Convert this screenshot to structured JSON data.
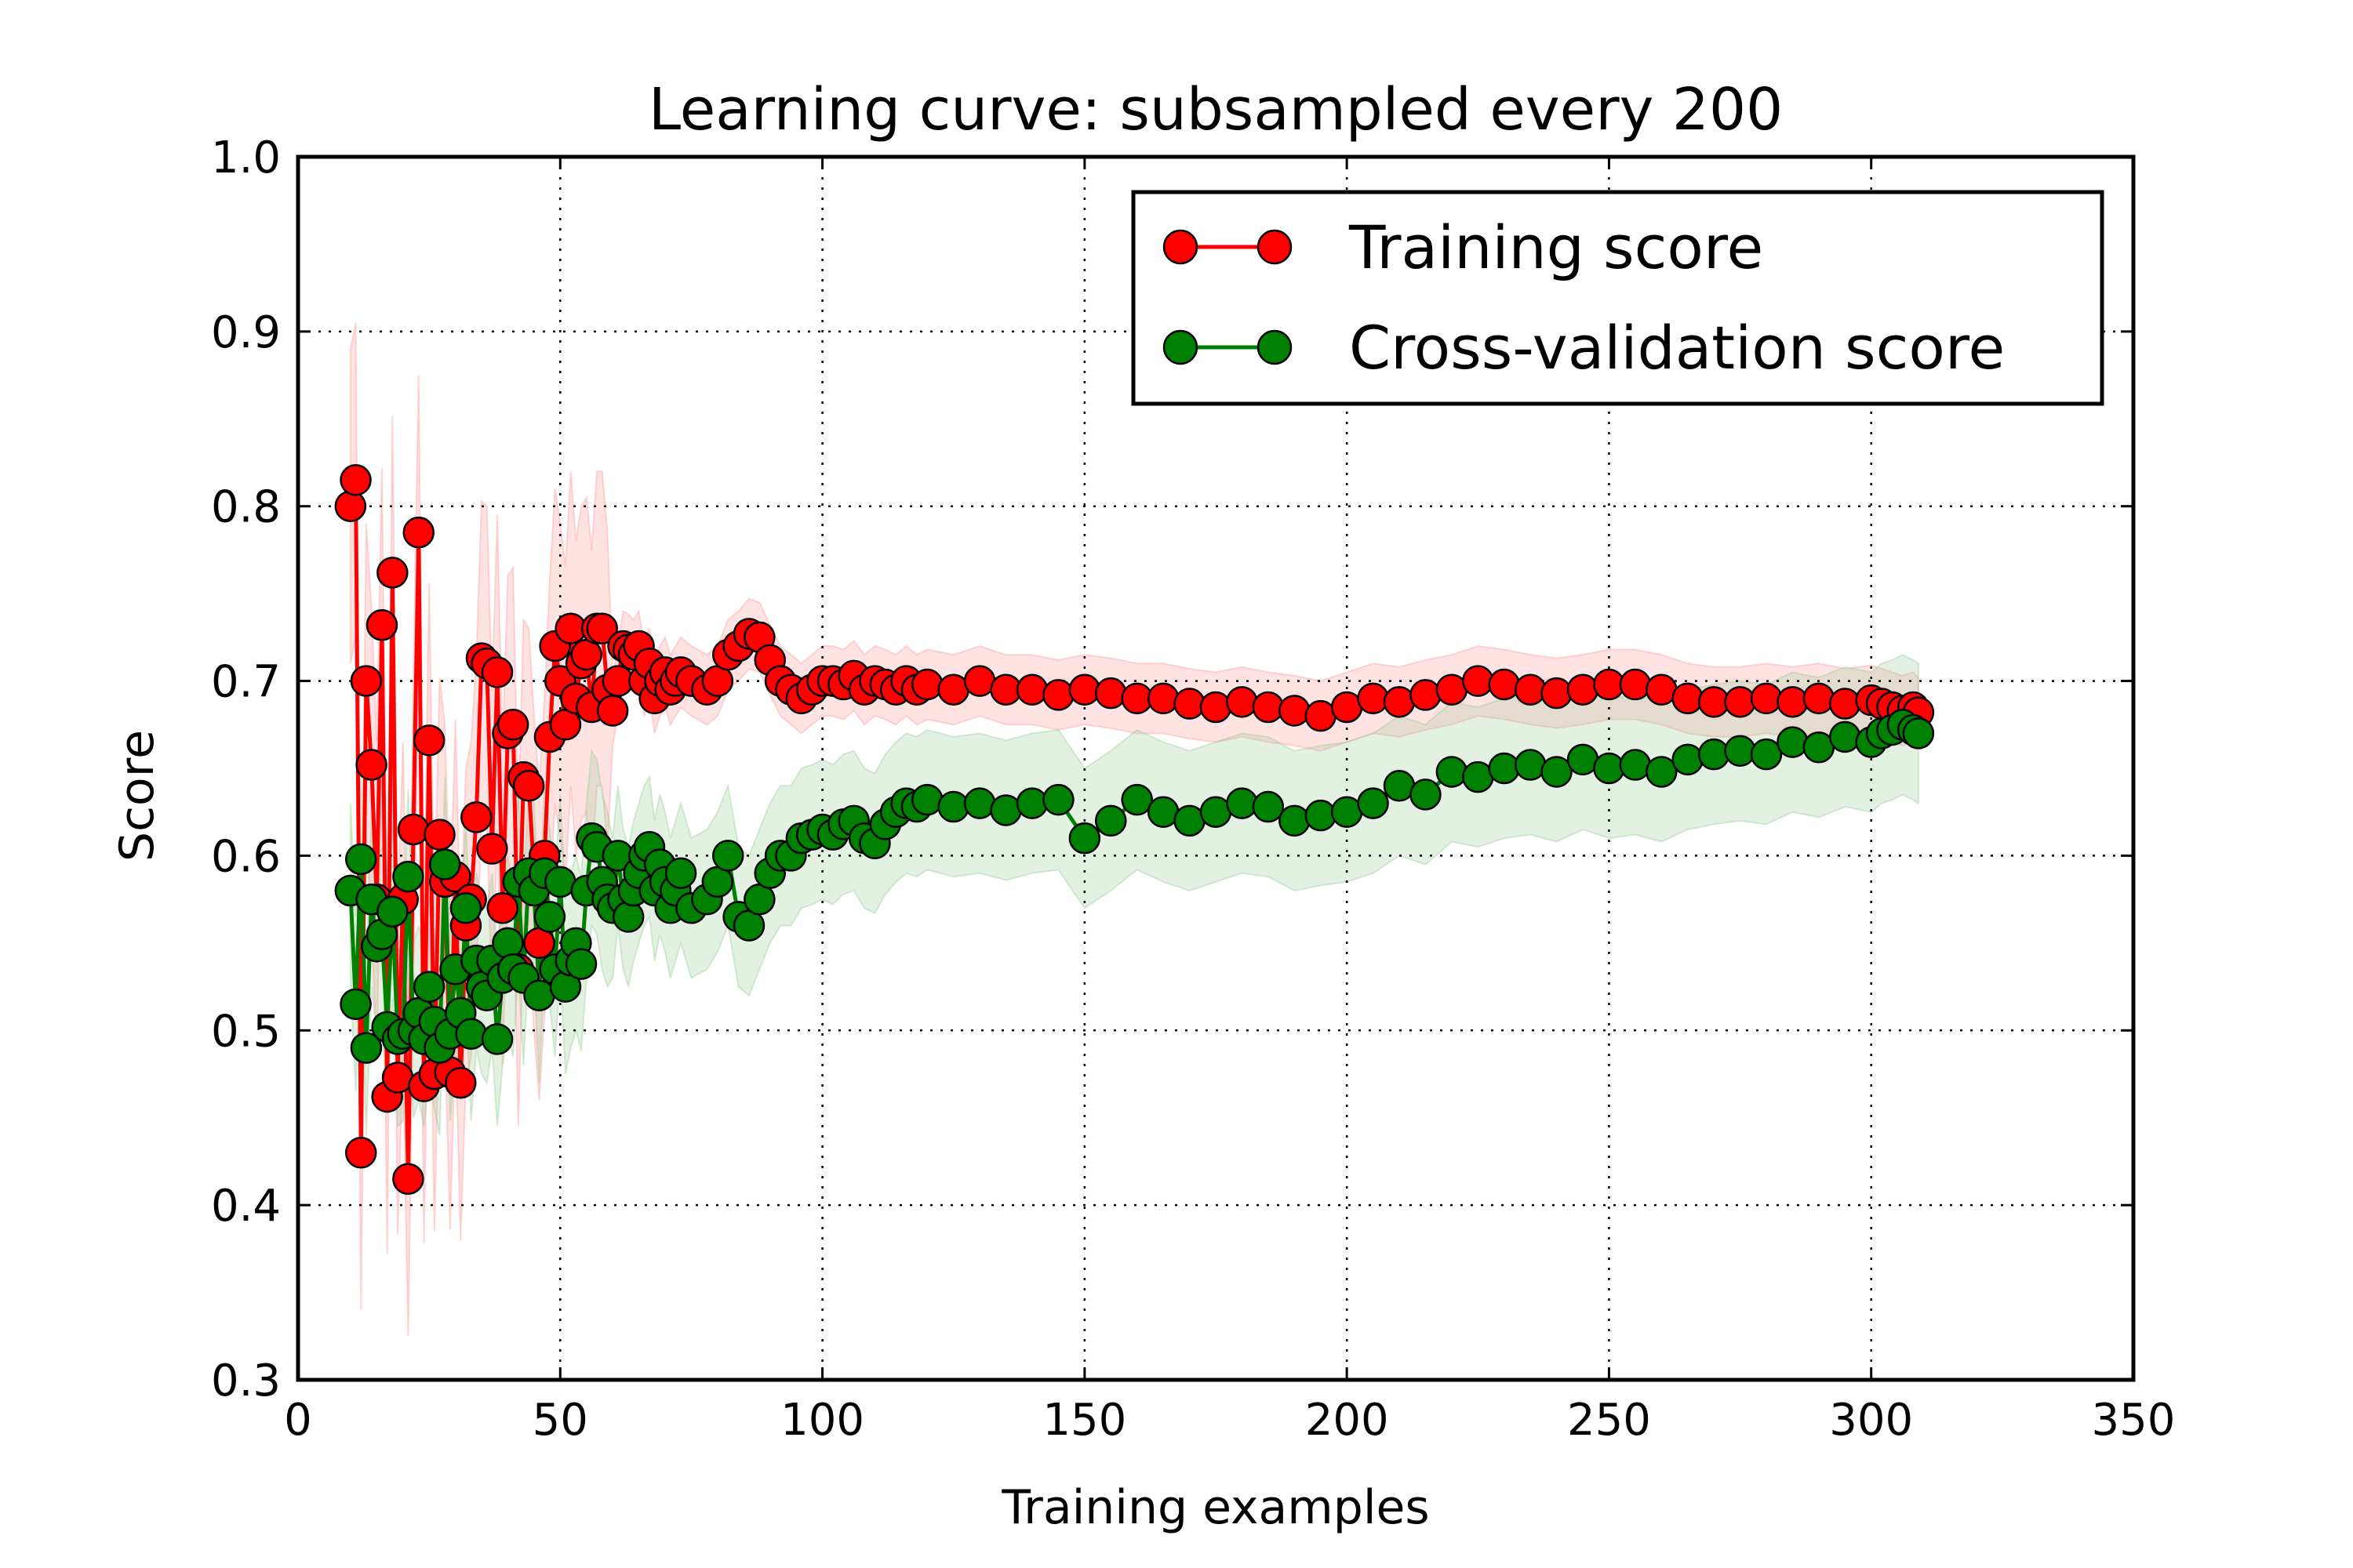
{
  "chart_data": {
    "type": "line",
    "title": "Learning curve: subsampled every 200",
    "xlabel": "Training examples",
    "ylabel": "Score",
    "xlim": [
      0,
      350
    ],
    "ylim": [
      0.3,
      1.0
    ],
    "xticks": [
      0,
      50,
      100,
      150,
      200,
      250,
      300,
      350
    ],
    "yticks": [
      0.3,
      0.4,
      0.5,
      0.6,
      0.7,
      0.8,
      0.9,
      1.0
    ],
    "xtick_labels": [
      "0",
      "50",
      "100",
      "150",
      "200",
      "250",
      "300",
      "350"
    ],
    "ytick_labels": [
      "0.3",
      "0.4",
      "0.5",
      "0.6",
      "0.7",
      "0.8",
      "0.9",
      "1.0"
    ],
    "grid": true,
    "legend_position": "top-right",
    "series": [
      {
        "name": "Training score",
        "color": "#ff0000",
        "band_color": "#ff9090",
        "x": [
          10,
          11,
          12,
          13,
          14,
          15,
          16,
          17,
          18,
          19,
          20,
          21,
          22,
          23,
          24,
          25,
          26,
          27,
          28,
          29,
          30,
          31,
          32,
          33,
          34,
          35,
          36,
          37,
          38,
          39,
          40,
          41,
          42,
          43,
          44,
          45,
          46,
          47,
          48,
          49,
          50,
          51,
          52,
          53,
          54,
          55,
          56,
          57,
          58,
          59,
          60,
          61,
          62,
          63,
          64,
          65,
          66,
          67,
          68,
          69,
          70,
          71,
          72,
          73,
          75,
          78,
          80,
          82,
          84,
          86,
          88,
          90,
          92,
          94,
          96,
          98,
          100,
          102,
          104,
          106,
          108,
          110,
          112,
          114,
          116,
          118,
          120,
          125,
          130,
          135,
          140,
          145,
          150,
          155,
          160,
          165,
          170,
          175,
          180,
          185,
          190,
          195,
          200,
          205,
          210,
          215,
          220,
          225,
          230,
          235,
          240,
          245,
          250,
          255,
          260,
          265,
          270,
          275,
          280,
          285,
          290,
          295,
          300,
          302,
          304,
          306,
          308,
          309
        ],
        "y": [
          0.8,
          0.815,
          0.43,
          0.7,
          0.652,
          0.575,
          0.732,
          0.462,
          0.762,
          0.473,
          0.575,
          0.415,
          0.615,
          0.785,
          0.468,
          0.666,
          0.475,
          0.612,
          0.585,
          0.476,
          0.588,
          0.47,
          0.56,
          0.575,
          0.622,
          0.713,
          0.71,
          0.604,
          0.705,
          0.57,
          0.67,
          0.675,
          0.535,
          0.645,
          0.64,
          0.59,
          0.55,
          0.6,
          0.668,
          0.72,
          0.7,
          0.675,
          0.73,
          0.69,
          0.71,
          0.715,
          0.685,
          0.73,
          0.73,
          0.695,
          0.683,
          0.7,
          0.72,
          0.718,
          0.715,
          0.72,
          0.7,
          0.71,
          0.69,
          0.7,
          0.705,
          0.695,
          0.7,
          0.705,
          0.7,
          0.695,
          0.7,
          0.715,
          0.72,
          0.727,
          0.725,
          0.712,
          0.7,
          0.695,
          0.69,
          0.695,
          0.7,
          0.7,
          0.698,
          0.703,
          0.695,
          0.7,
          0.698,
          0.695,
          0.7,
          0.695,
          0.698,
          0.695,
          0.7,
          0.695,
          0.695,
          0.692,
          0.695,
          0.693,
          0.69,
          0.69,
          0.687,
          0.685,
          0.688,
          0.685,
          0.683,
          0.68,
          0.685,
          0.69,
          0.688,
          0.692,
          0.695,
          0.7,
          0.698,
          0.695,
          0.693,
          0.695,
          0.698,
          0.698,
          0.695,
          0.69,
          0.688,
          0.688,
          0.69,
          0.688,
          0.69,
          0.687,
          0.689,
          0.687,
          0.685,
          0.683,
          0.685,
          0.682
        ]
      },
      {
        "name": "Cross-validation score",
        "color": "#008000",
        "band_color": "#8fc98f",
        "x": [
          10,
          11,
          12,
          13,
          14,
          15,
          16,
          17,
          18,
          19,
          20,
          21,
          22,
          23,
          24,
          25,
          26,
          27,
          28,
          29,
          30,
          31,
          32,
          33,
          34,
          35,
          36,
          37,
          38,
          39,
          40,
          41,
          42,
          43,
          44,
          45,
          46,
          47,
          48,
          49,
          50,
          51,
          52,
          53,
          54,
          55,
          56,
          57,
          58,
          59,
          60,
          61,
          62,
          63,
          64,
          65,
          66,
          67,
          68,
          69,
          70,
          71,
          72,
          73,
          75,
          78,
          80,
          82,
          84,
          86,
          88,
          90,
          92,
          94,
          96,
          98,
          100,
          102,
          104,
          106,
          108,
          110,
          112,
          114,
          116,
          118,
          120,
          125,
          130,
          135,
          140,
          145,
          150,
          155,
          160,
          165,
          170,
          175,
          180,
          185,
          190,
          195,
          200,
          205,
          210,
          215,
          220,
          225,
          230,
          235,
          240,
          245,
          250,
          255,
          260,
          265,
          270,
          275,
          280,
          285,
          290,
          295,
          300,
          302,
          304,
          306,
          308,
          309
        ],
        "y": [
          0.58,
          0.515,
          0.598,
          0.49,
          0.575,
          0.548,
          0.555,
          0.502,
          0.568,
          0.495,
          0.498,
          0.588,
          0.5,
          0.51,
          0.495,
          0.525,
          0.505,
          0.49,
          0.595,
          0.498,
          0.535,
          0.51,
          0.57,
          0.498,
          0.54,
          0.525,
          0.52,
          0.54,
          0.495,
          0.53,
          0.55,
          0.535,
          0.585,
          0.53,
          0.59,
          0.58,
          0.52,
          0.59,
          0.565,
          0.535,
          0.585,
          0.525,
          0.54,
          0.55,
          0.538,
          0.58,
          0.61,
          0.605,
          0.585,
          0.575,
          0.57,
          0.6,
          0.575,
          0.565,
          0.58,
          0.59,
          0.6,
          0.605,
          0.58,
          0.595,
          0.585,
          0.57,
          0.58,
          0.59,
          0.57,
          0.575,
          0.585,
          0.6,
          0.565,
          0.56,
          0.575,
          0.59,
          0.6,
          0.6,
          0.61,
          0.612,
          0.615,
          0.612,
          0.618,
          0.62,
          0.61,
          0.607,
          0.618,
          0.625,
          0.63,
          0.628,
          0.632,
          0.628,
          0.63,
          0.626,
          0.63,
          0.632,
          0.61,
          0.62,
          0.632,
          0.625,
          0.62,
          0.625,
          0.63,
          0.628,
          0.62,
          0.623,
          0.625,
          0.63,
          0.64,
          0.635,
          0.648,
          0.645,
          0.65,
          0.652,
          0.648,
          0.655,
          0.65,
          0.652,
          0.648,
          0.655,
          0.658,
          0.66,
          0.658,
          0.665,
          0.662,
          0.668,
          0.665,
          0.67,
          0.672,
          0.675,
          0.672,
          0.67
        ]
      }
    ]
  }
}
